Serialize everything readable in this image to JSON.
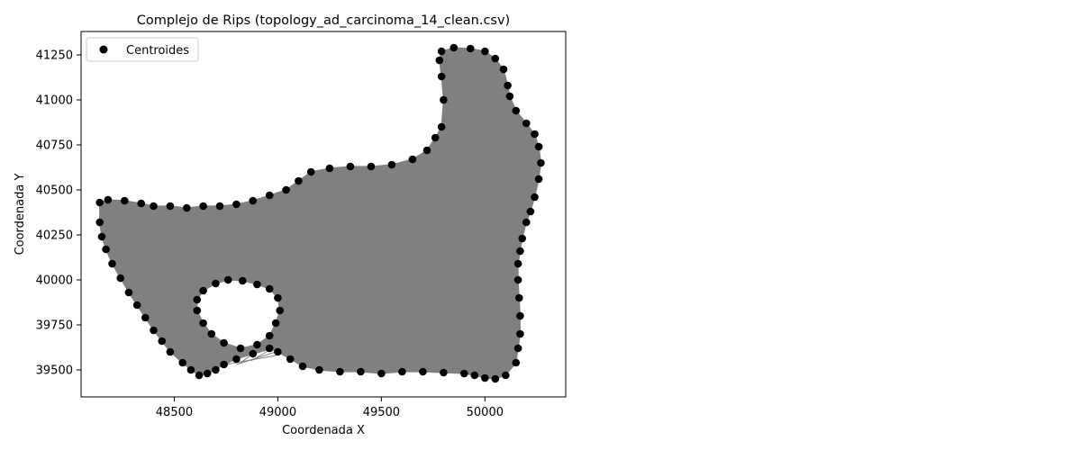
{
  "chart_data": {
    "type": "scatter",
    "title": "Complejo de Rips (topology_ad_carcinoma_14_clean.csv)",
    "xlabel": "Coordenada X",
    "ylabel": "Coordenada Y",
    "xlim": [
      48050,
      50390
    ],
    "ylim": [
      39350,
      41380
    ],
    "xticks": [
      48500,
      49000,
      49500,
      50000
    ],
    "yticks": [
      39500,
      39750,
      40000,
      40250,
      40500,
      40750,
      41000,
      41250
    ],
    "legend": {
      "position": "top-left",
      "entries": [
        {
          "label": "Centroides",
          "marker": "circle",
          "color": "#000000"
        }
      ]
    },
    "complex_color": "#808080",
    "marker_color": "#000000",
    "grid": false,
    "outer_boundary": [
      [
        48140,
        40430
      ],
      [
        48180,
        40445
      ],
      [
        48260,
        40440
      ],
      [
        48340,
        40425
      ],
      [
        48400,
        40410
      ],
      [
        48480,
        40410
      ],
      [
        48560,
        40400
      ],
      [
        48640,
        40410
      ],
      [
        48720,
        40410
      ],
      [
        48800,
        40420
      ],
      [
        48880,
        40440
      ],
      [
        48960,
        40470
      ],
      [
        49040,
        40500
      ],
      [
        49100,
        40550
      ],
      [
        49160,
        40600
      ],
      [
        49250,
        40620
      ],
      [
        49350,
        40630
      ],
      [
        49450,
        40630
      ],
      [
        49550,
        40640
      ],
      [
        49650,
        40670
      ],
      [
        49720,
        40720
      ],
      [
        49760,
        40790
      ],
      [
        49790,
        40850
      ],
      [
        49800,
        41000
      ],
      [
        49790,
        41130
      ],
      [
        49780,
        41220
      ],
      [
        49790,
        41270
      ],
      [
        49850,
        41290
      ],
      [
        49930,
        41285
      ],
      [
        50000,
        41270
      ],
      [
        50050,
        41230
      ],
      [
        50090,
        41170
      ],
      [
        50110,
        41080
      ],
      [
        50120,
        41020
      ],
      [
        50150,
        40940
      ],
      [
        50200,
        40870
      ],
      [
        50240,
        40810
      ],
      [
        50260,
        40740
      ],
      [
        50270,
        40650
      ],
      [
        50260,
        40560
      ],
      [
        50240,
        40460
      ],
      [
        50220,
        40380
      ],
      [
        50200,
        40320
      ],
      [
        50180,
        40230
      ],
      [
        50170,
        40160
      ],
      [
        50160,
        40090
      ],
      [
        50160,
        40000
      ],
      [
        50165,
        39900
      ],
      [
        50170,
        39800
      ],
      [
        50170,
        39700
      ],
      [
        50160,
        39620
      ],
      [
        50150,
        39540
      ],
      [
        50100,
        39470
      ],
      [
        50050,
        39450
      ],
      [
        50000,
        39455
      ],
      [
        49950,
        39470
      ],
      [
        49900,
        39480
      ],
      [
        49800,
        39485
      ],
      [
        49700,
        39490
      ],
      [
        49600,
        39490
      ],
      [
        49500,
        39480
      ],
      [
        49400,
        39490
      ],
      [
        49300,
        39490
      ],
      [
        49200,
        39500
      ],
      [
        49120,
        39520
      ],
      [
        49060,
        39560
      ],
      [
        49000,
        39600
      ],
      [
        48960,
        39620
      ],
      [
        48880,
        39590
      ],
      [
        48800,
        39560
      ],
      [
        48740,
        39530
      ],
      [
        48700,
        39500
      ],
      [
        48660,
        39480
      ],
      [
        48620,
        39470
      ],
      [
        48580,
        39500
      ],
      [
        48540,
        39540
      ],
      [
        48480,
        39600
      ],
      [
        48440,
        39660
      ],
      [
        48400,
        39720
      ],
      [
        48360,
        39790
      ],
      [
        48320,
        39860
      ],
      [
        48280,
        39930
      ],
      [
        48240,
        40010
      ],
      [
        48200,
        40090
      ],
      [
        48170,
        40170
      ],
      [
        48150,
        40240
      ],
      [
        48140,
        40320
      ]
    ],
    "hole_boundary": [
      [
        48640,
        39940
      ],
      [
        48700,
        39980
      ],
      [
        48760,
        40000
      ],
      [
        48830,
        39995
      ],
      [
        48900,
        39975
      ],
      [
        48960,
        39950
      ],
      [
        49000,
        39900
      ],
      [
        49010,
        39830
      ],
      [
        48990,
        39760
      ],
      [
        48960,
        39690
      ],
      [
        48900,
        39640
      ],
      [
        48820,
        39620
      ],
      [
        48740,
        39650
      ],
      [
        48680,
        39700
      ],
      [
        48640,
        39760
      ],
      [
        48610,
        39830
      ],
      [
        48610,
        39890
      ]
    ],
    "cross_edges": [
      [
        [
          48740,
          39560
        ],
        [
          48990,
          39640
        ]
      ],
      [
        [
          48760,
          39550
        ],
        [
          48980,
          39620
        ]
      ],
      [
        [
          48800,
          39530
        ],
        [
          48990,
          39600
        ]
      ],
      [
        [
          48780,
          39590
        ],
        [
          48970,
          39660
        ]
      ],
      [
        [
          48820,
          39540
        ],
        [
          49000,
          39690
        ]
      ],
      [
        [
          48700,
          39520
        ],
        [
          48990,
          39580
        ]
      ],
      [
        [
          48760,
          39600
        ],
        [
          49040,
          39620
        ]
      ],
      [
        [
          48870,
          39550
        ],
        [
          49020,
          39650
        ]
      ]
    ]
  }
}
